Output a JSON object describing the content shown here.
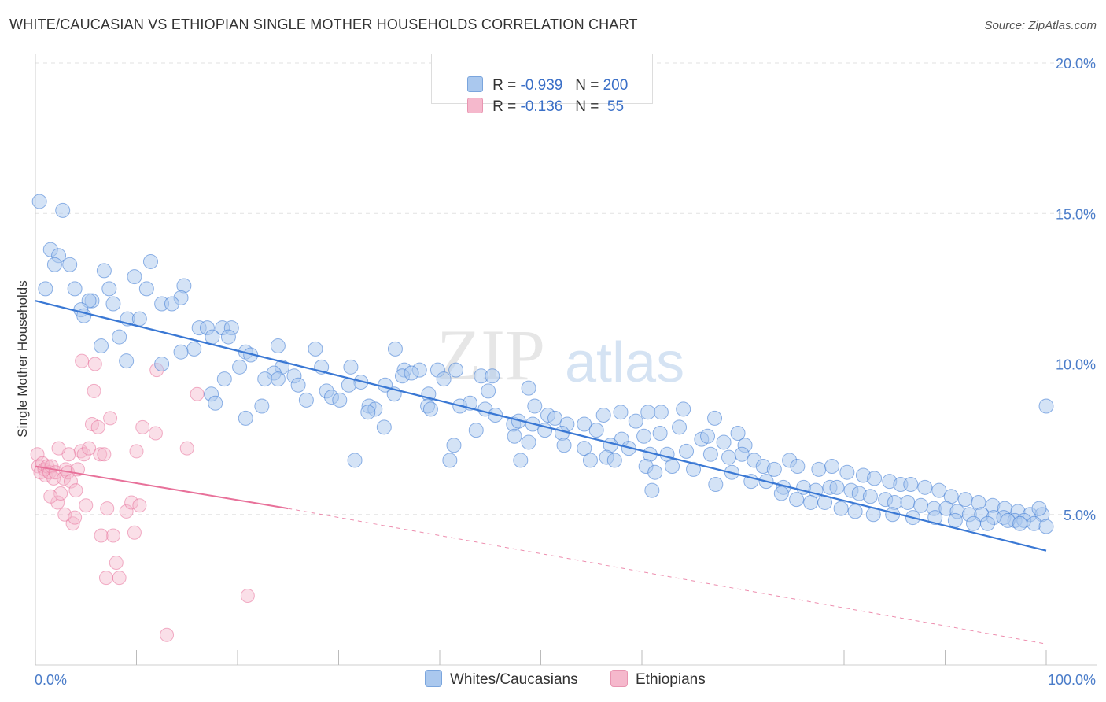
{
  "title": "WHITE/CAUCASIAN VS ETHIOPIAN SINGLE MOTHER HOUSEHOLDS CORRELATION CHART",
  "source": "Source: ZipAtlas.com",
  "watermark": {
    "zip": "ZIP",
    "atlas": "atlas"
  },
  "colors": {
    "blue": "#3a78d4",
    "blue_fill": "#aac8ee",
    "pink": "#e8719a",
    "pink_fill": "#f5b8cc",
    "axis_text": "#4a7cc9"
  },
  "legend": {
    "r_label": "R = ",
    "n_label": "N = ",
    "rows": [
      {
        "r": "-0.939",
        "n": "200"
      },
      {
        "r": "-0.136",
        "n": " 55"
      }
    ]
  },
  "bottom_legend": [
    "Whites/Caucasians",
    "Ethiopians"
  ],
  "chart_data": {
    "type": "scatter",
    "title": "WHITE/CAUCASIAN VS ETHIOPIAN SINGLE MOTHER HOUSEHOLDS CORRELATION CHART",
    "xlabel": "",
    "ylabel": "Single Mother Households",
    "xlim": [
      0,
      100
    ],
    "ylim": [
      0,
      20
    ],
    "x_tick_labels": [
      "0.0%",
      "100.0%"
    ],
    "y_ticks": [
      5,
      10,
      15,
      20
    ],
    "y_tick_labels": [
      "5.0%",
      "10.0%",
      "15.0%",
      "20.0%"
    ],
    "grid": true,
    "legend_position": "top-center",
    "series": [
      {
        "name": "Whites/Caucasians",
        "r": -0.939,
        "n": 200,
        "trend": {
          "x": [
            0,
            100
          ],
          "y": [
            12.1,
            3.8
          ]
        },
        "points": [
          [
            0.4,
            15.4
          ],
          [
            2.7,
            15.1
          ],
          [
            1.5,
            13.8
          ],
          [
            2.3,
            13.6
          ],
          [
            1.9,
            13.3
          ],
          [
            3.4,
            13.3
          ],
          [
            1.0,
            12.5
          ],
          [
            3.9,
            12.5
          ],
          [
            6.8,
            13.1
          ],
          [
            9.8,
            12.9
          ],
          [
            11.0,
            12.5
          ],
          [
            11.4,
            13.4
          ],
          [
            14.7,
            12.6
          ],
          [
            14.4,
            12.2
          ],
          [
            5.6,
            12.1
          ],
          [
            5.3,
            12.1
          ],
          [
            7.7,
            12.0
          ],
          [
            12.5,
            12.0
          ],
          [
            13.5,
            12.0
          ],
          [
            7.3,
            12.5
          ],
          [
            4.5,
            11.8
          ],
          [
            4.8,
            11.6
          ],
          [
            9.1,
            11.5
          ],
          [
            10.3,
            11.5
          ],
          [
            16.2,
            11.2
          ],
          [
            17.0,
            11.2
          ],
          [
            18.5,
            11.2
          ],
          [
            19.4,
            11.2
          ],
          [
            8.3,
            10.9
          ],
          [
            17.5,
            10.9
          ],
          [
            19.1,
            10.9
          ],
          [
            6.5,
            10.6
          ],
          [
            15.7,
            10.5
          ],
          [
            24.0,
            10.6
          ],
          [
            27.7,
            10.5
          ],
          [
            35.6,
            10.5
          ],
          [
            20.8,
            10.4
          ],
          [
            14.4,
            10.4
          ],
          [
            21.3,
            10.3
          ],
          [
            9.0,
            10.1
          ],
          [
            12.5,
            10.0
          ],
          [
            20.2,
            9.9
          ],
          [
            24.4,
            9.9
          ],
          [
            28.3,
            9.9
          ],
          [
            31.2,
            9.9
          ],
          [
            38.0,
            9.8
          ],
          [
            39.8,
            9.8
          ],
          [
            36.5,
            9.8
          ],
          [
            25.6,
            9.6
          ],
          [
            23.6,
            9.7
          ],
          [
            22.7,
            9.5
          ],
          [
            24.0,
            9.5
          ],
          [
            18.7,
            9.5
          ],
          [
            32.2,
            9.4
          ],
          [
            34.6,
            9.3
          ],
          [
            36.3,
            9.6
          ],
          [
            37.2,
            9.7
          ],
          [
            40.4,
            9.5
          ],
          [
            41.6,
            9.8
          ],
          [
            44.1,
            9.6
          ],
          [
            45.2,
            9.6
          ],
          [
            26.0,
            9.3
          ],
          [
            31.0,
            9.3
          ],
          [
            28.8,
            9.1
          ],
          [
            35.5,
            9.0
          ],
          [
            38.9,
            9.0
          ],
          [
            44.8,
            9.1
          ],
          [
            48.8,
            9.2
          ],
          [
            17.4,
            9.0
          ],
          [
            17.8,
            8.7
          ],
          [
            22.4,
            8.6
          ],
          [
            26.8,
            8.8
          ],
          [
            29.3,
            8.9
          ],
          [
            30.1,
            8.8
          ],
          [
            33.0,
            8.6
          ],
          [
            33.6,
            8.5
          ],
          [
            38.8,
            8.6
          ],
          [
            42.0,
            8.6
          ],
          [
            43.0,
            8.7
          ],
          [
            44.5,
            8.5
          ],
          [
            45.5,
            8.3
          ],
          [
            47.3,
            8.0
          ],
          [
            47.8,
            8.1
          ],
          [
            49.2,
            8.0
          ],
          [
            50.7,
            8.3
          ],
          [
            51.4,
            8.2
          ],
          [
            52.6,
            8.0
          ],
          [
            49.4,
            8.6
          ],
          [
            56.2,
            8.3
          ],
          [
            57.9,
            8.4
          ],
          [
            59.4,
            8.1
          ],
          [
            60.6,
            8.4
          ],
          [
            61.9,
            8.4
          ],
          [
            64.1,
            8.5
          ],
          [
            67.2,
            8.2
          ],
          [
            20.8,
            8.2
          ],
          [
            32.9,
            8.4
          ],
          [
            34.5,
            7.9
          ],
          [
            39.1,
            8.5
          ],
          [
            43.6,
            7.8
          ],
          [
            47.4,
            7.6
          ],
          [
            50.4,
            7.8
          ],
          [
            52.1,
            7.7
          ],
          [
            54.3,
            8.0
          ],
          [
            55.5,
            7.8
          ],
          [
            58.0,
            7.5
          ],
          [
            60.2,
            7.6
          ],
          [
            61.8,
            7.7
          ],
          [
            63.7,
            7.9
          ],
          [
            65.9,
            7.5
          ],
          [
            66.5,
            7.6
          ],
          [
            68.1,
            7.4
          ],
          [
            69.5,
            7.7
          ],
          [
            70.2,
            7.3
          ],
          [
            48.8,
            7.4
          ],
          [
            52.3,
            7.3
          ],
          [
            54.3,
            7.2
          ],
          [
            56.9,
            7.3
          ],
          [
            58.7,
            7.2
          ],
          [
            60.8,
            7.0
          ],
          [
            62.5,
            7.0
          ],
          [
            64.4,
            7.1
          ],
          [
            66.8,
            7.0
          ],
          [
            68.6,
            6.9
          ],
          [
            69.9,
            7.0
          ],
          [
            71.1,
            6.8
          ],
          [
            72.0,
            6.6
          ],
          [
            73.1,
            6.5
          ],
          [
            74.6,
            6.8
          ],
          [
            75.4,
            6.6
          ],
          [
            77.5,
            6.5
          ],
          [
            78.8,
            6.6
          ],
          [
            80.3,
            6.4
          ],
          [
            81.9,
            6.3
          ],
          [
            83.0,
            6.2
          ],
          [
            84.5,
            6.1
          ],
          [
            85.6,
            6.0
          ],
          [
            86.6,
            6.0
          ],
          [
            88.0,
            5.9
          ],
          [
            89.4,
            5.8
          ],
          [
            90.6,
            5.6
          ],
          [
            92.0,
            5.5
          ],
          [
            93.3,
            5.4
          ],
          [
            94.7,
            5.3
          ],
          [
            95.9,
            5.2
          ],
          [
            97.2,
            5.1
          ],
          [
            98.4,
            5.0
          ],
          [
            99.6,
            5.0
          ],
          [
            31.6,
            6.8
          ],
          [
            41.0,
            6.8
          ],
          [
            41.4,
            7.3
          ],
          [
            48.0,
            6.8
          ],
          [
            54.9,
            6.8
          ],
          [
            56.5,
            6.9
          ],
          [
            57.3,
            6.8
          ],
          [
            60.4,
            6.6
          ],
          [
            61.3,
            6.4
          ],
          [
            63.0,
            6.6
          ],
          [
            65.1,
            6.5
          ],
          [
            68.9,
            6.4
          ],
          [
            72.3,
            6.1
          ],
          [
            74.0,
            5.9
          ],
          [
            76.0,
            5.9
          ],
          [
            77.2,
            5.8
          ],
          [
            78.6,
            5.9
          ],
          [
            79.3,
            5.9
          ],
          [
            80.7,
            5.8
          ],
          [
            81.5,
            5.7
          ],
          [
            82.6,
            5.6
          ],
          [
            84.1,
            5.5
          ],
          [
            85.0,
            5.4
          ],
          [
            86.3,
            5.4
          ],
          [
            87.6,
            5.3
          ],
          [
            88.9,
            5.2
          ],
          [
            90.1,
            5.2
          ],
          [
            91.2,
            5.1
          ],
          [
            92.4,
            5.0
          ],
          [
            93.6,
            5.0
          ],
          [
            94.8,
            4.9
          ],
          [
            95.8,
            4.9
          ],
          [
            96.9,
            4.8
          ],
          [
            97.8,
            4.8
          ],
          [
            98.8,
            4.7
          ],
          [
            100.0,
            8.6
          ],
          [
            61.0,
            5.8
          ],
          [
            67.3,
            6.0
          ],
          [
            70.8,
            6.1
          ],
          [
            73.8,
            5.7
          ],
          [
            75.3,
            5.5
          ],
          [
            76.7,
            5.4
          ],
          [
            78.1,
            5.4
          ],
          [
            79.7,
            5.2
          ],
          [
            81.1,
            5.1
          ],
          [
            82.9,
            5.0
          ],
          [
            84.8,
            5.0
          ],
          [
            86.8,
            4.9
          ],
          [
            89.0,
            4.9
          ],
          [
            91.0,
            4.8
          ],
          [
            92.8,
            4.7
          ],
          [
            94.2,
            4.7
          ],
          [
            96.2,
            4.8
          ],
          [
            97.4,
            4.7
          ],
          [
            99.3,
            5.2
          ],
          [
            100.0,
            4.6
          ]
        ]
      },
      {
        "name": "Ethiopians",
        "r": -0.136,
        "n": 55,
        "trend_solid": {
          "x": [
            0,
            25
          ],
          "y": [
            6.6,
            5.2
          ]
        },
        "trend_dashed": {
          "x": [
            25,
            100
          ],
          "y": [
            5.2,
            0.7
          ]
        },
        "points": [
          [
            0.2,
            7.0
          ],
          [
            0.3,
            6.6
          ],
          [
            0.5,
            6.4
          ],
          [
            0.7,
            6.7
          ],
          [
            0.9,
            6.5
          ],
          [
            1.0,
            6.3
          ],
          [
            1.2,
            6.6
          ],
          [
            1.4,
            6.4
          ],
          [
            1.6,
            6.6
          ],
          [
            1.8,
            6.2
          ],
          [
            2.0,
            6.4
          ],
          [
            2.2,
            5.4
          ],
          [
            2.5,
            5.7
          ],
          [
            2.8,
            6.2
          ],
          [
            3.0,
            6.5
          ],
          [
            3.2,
            6.4
          ],
          [
            3.5,
            6.1
          ],
          [
            3.7,
            4.7
          ],
          [
            4.0,
            5.8
          ],
          [
            4.2,
            6.5
          ],
          [
            4.5,
            7.1
          ],
          [
            4.8,
            7.0
          ],
          [
            5.0,
            5.3
          ],
          [
            5.3,
            7.2
          ],
          [
            5.6,
            8.0
          ],
          [
            5.9,
            10.0
          ],
          [
            6.2,
            7.9
          ],
          [
            6.4,
            7.0
          ],
          [
            6.8,
            7.0
          ],
          [
            7.1,
            5.2
          ],
          [
            7.4,
            8.2
          ],
          [
            7.7,
            4.3
          ],
          [
            8.0,
            3.4
          ],
          [
            8.3,
            2.9
          ],
          [
            9.0,
            5.1
          ],
          [
            9.5,
            5.4
          ],
          [
            10.0,
            7.1
          ],
          [
            10.3,
            5.3
          ],
          [
            10.6,
            7.9
          ],
          [
            11.9,
            7.7
          ],
          [
            12.0,
            9.8
          ],
          [
            13.0,
            1.0
          ],
          [
            15.0,
            7.2
          ],
          [
            16.0,
            9.0
          ],
          [
            21.0,
            2.3
          ],
          [
            2.9,
            5.0
          ],
          [
            3.3,
            7.0
          ],
          [
            4.6,
            10.1
          ],
          [
            5.8,
            9.1
          ],
          [
            6.5,
            4.3
          ],
          [
            7.0,
            2.9
          ],
          [
            9.8,
            4.4
          ],
          [
            2.3,
            7.2
          ],
          [
            3.9,
            4.9
          ],
          [
            1.5,
            5.6
          ]
        ]
      }
    ]
  }
}
